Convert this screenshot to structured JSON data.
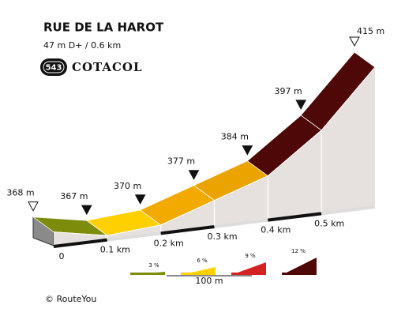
{
  "chart_data": {
    "type": "profile",
    "title": "RUE DE LA HAROT",
    "subtitle": "47 m D+ / 0.6 km",
    "badge": "543",
    "brand": "COTACOL",
    "x": [
      0,
      0.1,
      0.2,
      0.3,
      0.4,
      0.5,
      0.6
    ],
    "values": [
      368,
      367,
      370,
      377,
      384,
      397,
      415
    ],
    "value_labels": [
      "368 m",
      "367 m",
      "370 m",
      "377 m",
      "384 m",
      "397 m",
      "415 m"
    ],
    "segment_colors": [
      "#7d8c0a",
      "#ffd000",
      "#f2a900",
      "#eba300",
      "#4f0808",
      "#4f0808"
    ],
    "xlim": [
      0,
      0.6
    ],
    "ylim": [
      365,
      415
    ],
    "xticks": [
      0,
      {
        "value": 0.1,
        "label": "0.1 km"
      },
      {
        "value": 0.2,
        "label": "0.2 km"
      },
      {
        "value": 0.3,
        "label": "0.3 km"
      },
      {
        "value": 0.4,
        "label": "0.4 km"
      },
      {
        "value": 0.5,
        "label": "0.5 km"
      }
    ],
    "legend": [
      {
        "label": "3 %",
        "color": "#7d8c0a"
      },
      {
        "label": "6 %",
        "color": "#ffd000"
      },
      {
        "label": "9 %",
        "color": "#d42222"
      },
      {
        "label": "12 %",
        "color": "#4f0808"
      }
    ],
    "scale_label": "100 m",
    "credit": "© RouteYou"
  }
}
